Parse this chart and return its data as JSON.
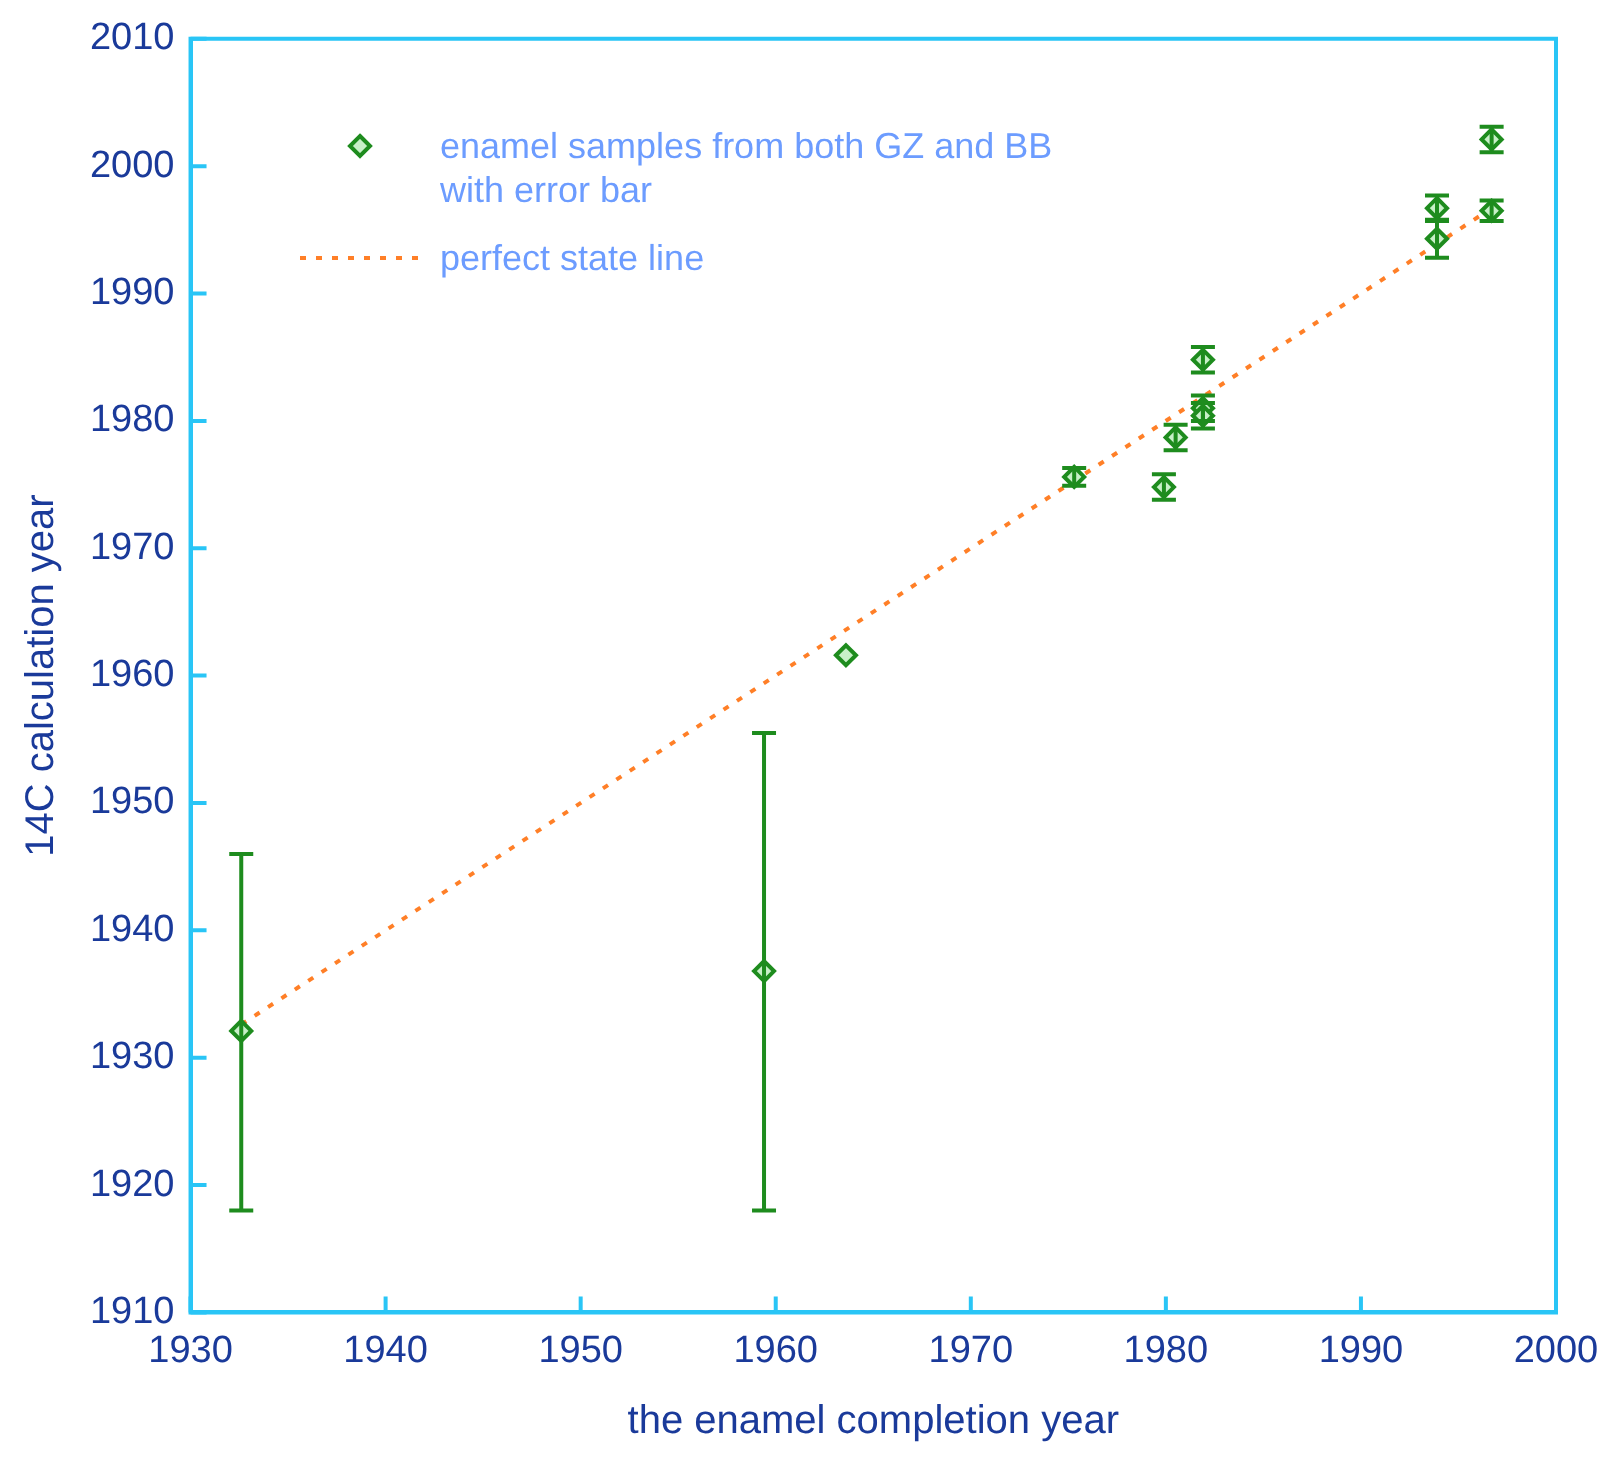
{
  "chart_data": {
    "type": "scatter",
    "xlabel": "the enamel completion year",
    "ylabel": "14C calculation year",
    "xlim": [
      1930,
      2000
    ],
    "xticks": [
      1930,
      1940,
      1950,
      1960,
      1970,
      1980,
      1990,
      2000
    ],
    "ylim": [
      1910,
      2010
    ],
    "yticks": [
      1910,
      1920,
      1930,
      1940,
      1950,
      1960,
      1970,
      1980,
      1990,
      2000,
      2010
    ],
    "grid": false,
    "legend": "top left",
    "series": [
      {
        "name": "enamel samples from both GZ and BB with error bar",
        "color": "#1e8c1e",
        "marker": "diamond",
        "x": [
          1932.6,
          1959.4,
          1963.6,
          1975.3,
          1979.9,
          1980.5,
          1981.9,
          1981.9,
          1981.9,
          1993.9,
          1993.9,
          1996.7,
          1996.7
        ],
        "values": [
          1932.1,
          1936.8,
          1961.6,
          1975.6,
          1974.8,
          1978.7,
          1984.8,
          1981,
          1980.4,
          1996.7,
          1994.3,
          2002.1,
          1996.5
        ],
        "errors": [
          [
            1918,
            1946
          ],
          [
            1918,
            1955.5
          ],
          null,
          0.7,
          1,
          1,
          1,
          1,
          1,
          1,
          1.5,
          1,
          0.8
        ]
      },
      {
        "name": "perfect state line",
        "type": "line",
        "color": "#ff7f27",
        "line_style": "dotted",
        "x": [
          1932.6,
          1996.7
        ],
        "values": [
          1932.6,
          1996.7
        ]
      }
    ]
  }
}
